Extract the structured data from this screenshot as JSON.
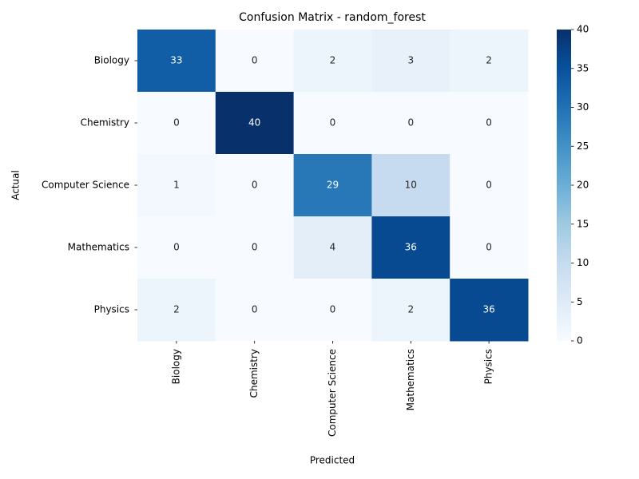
{
  "chart_data": {
    "type": "heatmap",
    "title": "Confusion Matrix - random_forest",
    "x_label": "Predicted",
    "y_label": "Actual",
    "x_categories": [
      "Biology",
      "Chemistry",
      "Computer Science",
      "Mathematics",
      "Physics"
    ],
    "y_categories": [
      "Biology",
      "Chemistry",
      "Computer Science",
      "Mathematics",
      "Physics"
    ],
    "values": [
      [
        33,
        0,
        2,
        3,
        2
      ],
      [
        0,
        40,
        0,
        0,
        0
      ],
      [
        1,
        0,
        29,
        10,
        0
      ],
      [
        0,
        0,
        4,
        36,
        0
      ],
      [
        2,
        0,
        0,
        2,
        36
      ]
    ],
    "colormap": "Blues",
    "zlim": [
      0,
      40
    ],
    "zticks": [
      0,
      5,
      10,
      15,
      20,
      25,
      30,
      35,
      40
    ]
  }
}
